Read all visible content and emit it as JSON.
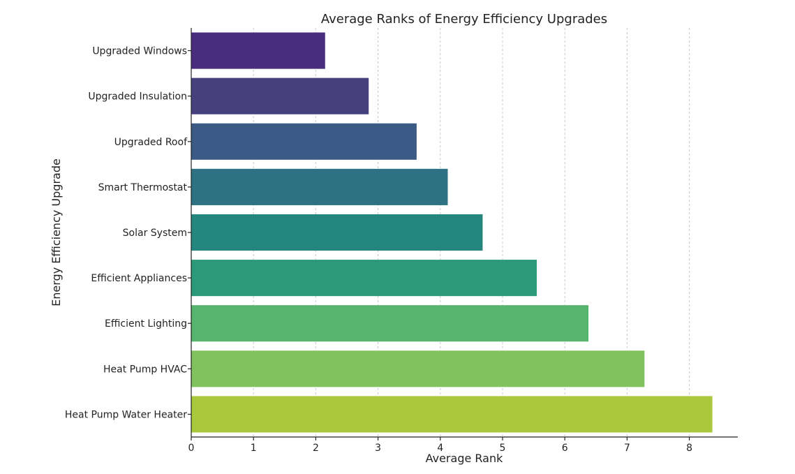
{
  "chart_data": {
    "type": "bar",
    "orientation": "horizontal",
    "title": "Average Ranks of Energy Efficiency Upgrades",
    "xlabel": "Average Rank",
    "ylabel": "Energy Efficiency Upgrade",
    "categories": [
      "Upgraded Windows",
      "Upgraded Insulation",
      "Upgraded Roof",
      "Smart Thermostat",
      "Solar System",
      "Efficient Appliances",
      "Efficient Lighting",
      "Heat Pump HVAC",
      "Heat Pump Water Heater"
    ],
    "values": [
      2.15,
      2.85,
      3.62,
      4.12,
      4.68,
      5.55,
      6.38,
      7.28,
      8.37
    ],
    "colors": [
      "#472d7b",
      "#46407e",
      "#3b5a86",
      "#2e7182",
      "#24867f",
      "#2c9a78",
      "#56b46f",
      "#80c25e",
      "#a9c83b"
    ],
    "xlim": [
      0,
      8.8
    ],
    "xticks": [
      "0",
      "1",
      "2",
      "3",
      "4",
      "5",
      "6",
      "7",
      "8"
    ],
    "grid": "vertical dashed",
    "legend": "none"
  }
}
